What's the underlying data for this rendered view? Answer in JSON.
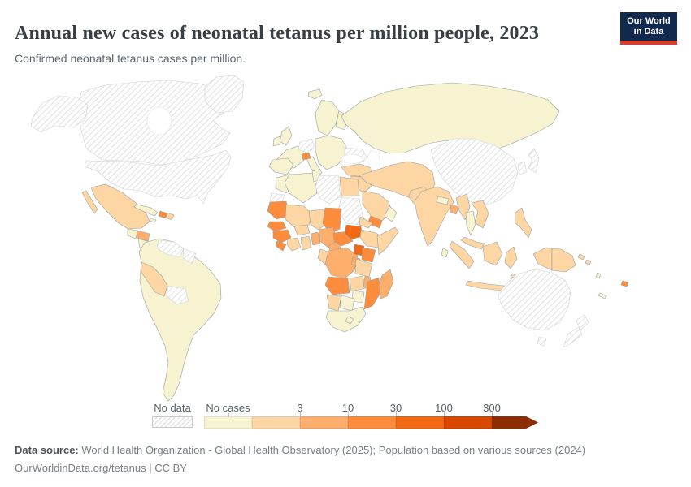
{
  "header": {
    "title": "Annual new cases of neonatal tetanus per million people, 2023",
    "subtitle": "Confirmed neonatal tetanus cases per million.",
    "logo": {
      "line1": "Our World",
      "line2": "in Data",
      "bg_color": "#12294e",
      "bar_color": "#dc3b2e"
    }
  },
  "legend": {
    "no_data_label": "No data",
    "bar": [
      {
        "key": "no_cases",
        "label": "No cases"
      },
      {
        "key": "lt3"
      },
      {
        "key": "v3_10",
        "tick": "3"
      },
      {
        "key": "v10_30",
        "tick": "10"
      },
      {
        "key": "v30_100",
        "tick": "30"
      },
      {
        "key": "v100_300",
        "tick": "100"
      },
      {
        "key": "gt300",
        "tick": "300",
        "arrow": true
      }
    ]
  },
  "map": {
    "bin_colors": {
      "no_cases": "#f7f3d0",
      "lt3": "#fdd6a4",
      "v3_10": "#fdae6b",
      "v10_30": "#fd8d3c",
      "v30_100": "#f16913",
      "v100_300": "#d94801",
      "gt300": "#8c2d04"
    },
    "stroke_colored": "#98a0a0",
    "stroke_no_data": "#cdd2d6",
    "regions": {
      "greenland": "no_data",
      "alaska": "no_data",
      "canada": "no_data",
      "usa": "no_data",
      "china-mongolia": "no_data",
      "japan": "no_data",
      "korea": "no_data",
      "germany": "no_data",
      "ukraine": "no_data",
      "venezuela": "no_data",
      "guyanas": "no_data",
      "bolivia": "no_data",
      "libya": "no_data",
      "sudan": "no_data",
      "western-sahara": "no_data",
      "australia": "no_data",
      "tasmania": "no_data",
      "new-zealand-north": "no_data",
      "new-zealand-south": "no_data",
      "iceland": "no_cases",
      "uk": "no_cases",
      "ireland": "no_cases",
      "scandinavia": "no_cases",
      "finland-baltics": "no_cases",
      "france": "no_cases",
      "iberia": "no_cases",
      "italy": "no_cases",
      "eastern-europe": "no_cases",
      "russia": "no_cases",
      "morocco": "no_cases",
      "algeria": "no_cases",
      "tunisia": "no_cases",
      "south-africa": "no_cases",
      "lesotho": "no_cases",
      "botswana": "no_cases",
      "zimbabwe": "no_cases",
      "thailand": "no_cases",
      "sri-lanka": "no_cases",
      "nepal": "no_cases",
      "oman": "no_cases",
      "jordan-israel": "no_cases",
      "cuba": "no_cases",
      "guatemala": "no_cases",
      "nicaragua-panama": "no_cases",
      "jamaica": "no_cases",
      "south-america": "no_cases",
      "vanuatu": "no_cases",
      "new-caledonia": "no_cases",
      "mexico": "lt3",
      "baja": "lt3",
      "dominican-republic": "lt3",
      "peru": "lt3",
      "turkey": "lt3",
      "iraq-syria": "lt3",
      "iran-stans": "lt3",
      "pakistan": "lt3",
      "saudi-arabia": "lt3",
      "india": "lt3",
      "myanmar": "lt3",
      "indochina": "lt3",
      "malaysia": "lt3",
      "sumatra": "lt3",
      "borneo": "lt3",
      "java": "lt3",
      "sulawesi": "lt3",
      "philippines": "lt3",
      "west-papua": "lt3",
      "png": "lt3",
      "solomons-1": "lt3",
      "solomons-2": "lt3",
      "timor": "lt3",
      "mali": "lt3",
      "niger": "lt3",
      "burkina-faso": "lt3",
      "cote-divoire": "lt3",
      "ghana": "lt3",
      "ethiopia": "lt3",
      "eritrea": "lt3",
      "somalia": "lt3",
      "tanzania": "lt3",
      "zambia": "lt3",
      "namibia": "lt3",
      "gabon-congo": "lt3",
      "egypt": "lt3",
      "honduras": "v3_10",
      "nigeria": "v3_10",
      "cameroon": "v3_10",
      "togo-benin": "v3_10",
      "drc": "v3_10",
      "rwanda-burundi": "v3_10",
      "malawi": "v3_10",
      "madagascar": "v3_10",
      "bangladesh": "v3_10",
      "haiti": "v10_30",
      "switzerland": "v10_30",
      "yemen": "v10_30",
      "senegal": "v10_30",
      "guinea": "v10_30",
      "sierra-leone-liberia": "v10_30",
      "mauritania": "v10_30",
      "chad": "v10_30",
      "central-african-republic": "v10_30",
      "kenya": "v10_30",
      "angola": "v10_30",
      "mozambique": "v10_30",
      "fiji": "v10_30",
      "uganda": "v30_100",
      "south-sudan": "v30_100"
    }
  },
  "footer": {
    "source_bold": "Data source:",
    "source_rest": " World Health Organization - Global Health Observatory (2025); Population based on various sources (2024)",
    "link_line": "OurWorldinData.org/tetanus | CC BY"
  },
  "chart_data": {
    "type": "choropleth_map",
    "title": "Annual new cases of neonatal tetanus per million people, 2023",
    "unit": "confirmed neonatal tetanus cases per million people",
    "legend_bins": [
      "No data",
      "No cases",
      "0–3",
      "3–10",
      "10–30",
      "30–100",
      "100–300",
      "300+"
    ],
    "legend_colors": [
      "hatched",
      "#f7f3d0",
      "#fdd6a4",
      "#fdae6b",
      "#fd8d3c",
      "#f16913",
      "#d94801",
      "#8c2d04"
    ],
    "observations": {
      "no_data": [
        "United States",
        "Canada",
        "Greenland",
        "Australia",
        "New Zealand",
        "China",
        "Mongolia",
        "Japan",
        "South Korea",
        "North Korea",
        "Germany",
        "Ukraine",
        "Venezuela",
        "Guyana",
        "Suriname",
        "Bolivia",
        "Libya",
        "Sudan",
        "Western Sahara"
      ],
      "no_cases": [
        "Brazil",
        "Argentina",
        "Chile",
        "Colombia",
        "Ecuador",
        "Paraguay",
        "Uruguay",
        "Cuba",
        "Guatemala",
        "Nicaragua",
        "Costa Rica",
        "Panama",
        "Jamaica",
        "Iceland",
        "United Kingdom",
        "Ireland",
        "France",
        "Spain",
        "Portugal",
        "Italy",
        "Norway",
        "Sweden",
        "Finland",
        "Poland",
        "Romania",
        "Greece",
        "Russia",
        "Kazakhstan",
        "Morocco",
        "Algeria",
        "Tunisia",
        "South Africa",
        "Botswana",
        "Zimbabwe",
        "Lesotho",
        "Thailand",
        "Sri Lanka",
        "Nepal",
        "Oman",
        "Jordan",
        "Vanuatu",
        "New Caledonia"
      ],
      "0-3": [
        "Mexico",
        "Dominican Republic",
        "Peru",
        "Turkey",
        "Syria",
        "Iraq",
        "Iran",
        "Saudi Arabia",
        "Afghanistan",
        "Pakistan",
        "Uzbekistan",
        "Turkmenistan",
        "Tajikistan",
        "Kyrgyzstan",
        "India",
        "Myanmar",
        "Vietnam",
        "Laos",
        "Cambodia",
        "Malaysia",
        "Indonesia",
        "Philippines",
        "Papua New Guinea",
        "Solomon Islands",
        "Timor-Leste",
        "Egypt",
        "Mali",
        "Niger",
        "Burkina Faso",
        "Côte d'Ivoire",
        "Ghana",
        "Ethiopia",
        "Eritrea",
        "Somalia",
        "Tanzania",
        "Zambia",
        "Namibia",
        "Gabon",
        "Republic of Congo"
      ],
      "3-10": [
        "Honduras",
        "Nigeria",
        "Cameroon",
        "Benin",
        "Togo",
        "Democratic Republic of Congo",
        "Rwanda",
        "Burundi",
        "Malawi",
        "Madagascar",
        "Bangladesh"
      ],
      "10-30": [
        "Haiti",
        "Switzerland",
        "Yemen",
        "Senegal",
        "Guinea",
        "Sierra Leone",
        "Liberia",
        "Mauritania",
        "Chad",
        "Central African Republic",
        "Kenya",
        "Angola",
        "Mozambique",
        "Fiji"
      ],
      "30-100": [
        "Uganda",
        "South Sudan"
      ]
    }
  }
}
